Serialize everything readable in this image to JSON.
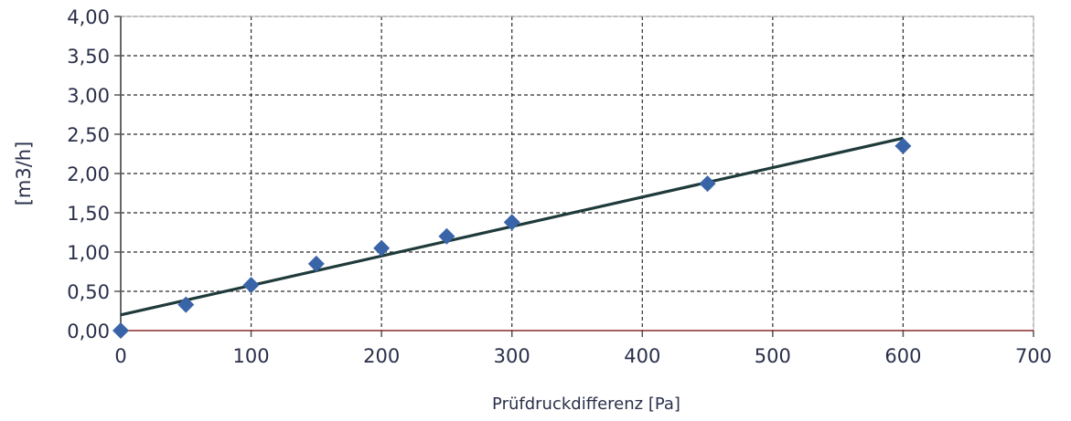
{
  "chart_data": {
    "type": "scatter",
    "xlabel": "Prüfdruckdifferenz [Pa]",
    "ylabel": "[m3/h]",
    "xlim": [
      0,
      700
    ],
    "ylim": [
      0,
      4
    ],
    "x_ticks": [
      "0",
      "100",
      "200",
      "300",
      "400",
      "500",
      "600",
      "700"
    ],
    "y_ticks": [
      "0,00",
      "0,50",
      "1,00",
      "1,50",
      "2,00",
      "2,50",
      "3,00",
      "3,50",
      "4,00"
    ],
    "grid": true,
    "series": [
      {
        "x": [
          0,
          50,
          100,
          150,
          200,
          250,
          300,
          450,
          600
        ],
        "y": [
          0.0,
          0.33,
          0.58,
          0.85,
          1.05,
          1.2,
          1.38,
          1.87,
          2.35
        ],
        "marker": "diamond",
        "color": "#3a64a8"
      }
    ],
    "trendline": {
      "type": "linear",
      "x": [
        0,
        600
      ],
      "y": [
        0.2,
        2.45
      ],
      "color": "#1f3a3a"
    }
  }
}
